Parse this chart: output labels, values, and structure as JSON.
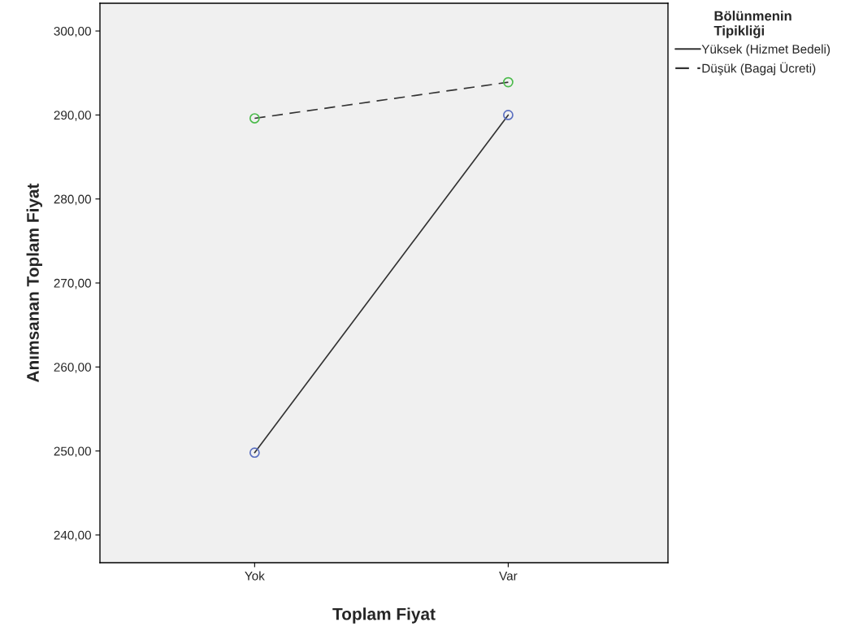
{
  "chart_data": {
    "type": "line",
    "xlabel": "Toplam Fiyat",
    "ylabel": "Anımsanan Toplam Fiyat",
    "legend_title": "Bölünmenin\nTipikliği",
    "categories": [
      "Yok",
      "Var"
    ],
    "series": [
      {
        "name": "Yüksek (Hizmet Bedeli)",
        "color": "#333333",
        "colors": [
          "#5a6fc0",
          "#5a6fc0"
        ],
        "values": [
          249.8,
          290.0
        ],
        "line_style": "solid"
      },
      {
        "name": "Düşük (Bagaj Ücreti)",
        "color": "#333333",
        "colors": [
          "#4cbb4c",
          "#4cbb4c"
        ],
        "values": [
          289.6,
          293.9
        ],
        "line_style": "dashed"
      }
    ],
    "ylim": [
      236.7,
      303.3
    ],
    "yticks": [
      {
        "value": 240,
        "label": "240,00"
      },
      {
        "value": 250,
        "label": "250,00"
      },
      {
        "value": 260,
        "label": "260,00"
      },
      {
        "value": 270,
        "label": "270,00"
      },
      {
        "value": 280,
        "label": "280,00"
      },
      {
        "value": 290,
        "label": "290,00"
      },
      {
        "value": 300,
        "label": "300,00"
      }
    ],
    "marker": "circle",
    "grid": false,
    "legend": "top right"
  }
}
